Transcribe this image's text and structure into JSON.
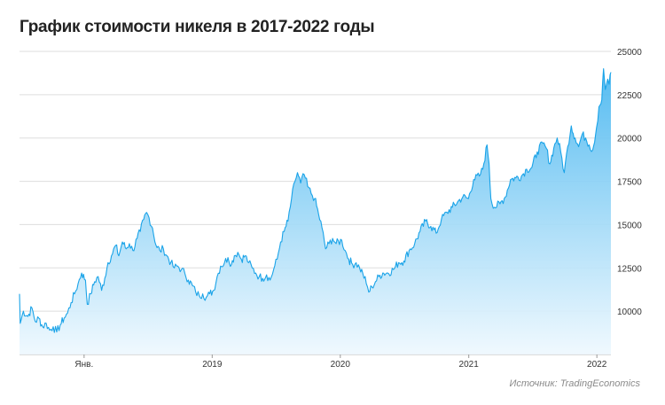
{
  "header": {
    "title": "График стоимости никеля в 2017-2022 годы"
  },
  "footer": {
    "source": "Источник: TradingEconomics"
  },
  "colors": {
    "line": "#1aa3e8",
    "fill_top": "#4cb8f0",
    "fill_bottom": "#eef8fe",
    "grid": "#dddddd"
  },
  "chart_data": {
    "type": "area",
    "title": "График стоимости никеля в 2017-2022 годы",
    "xlabel": "",
    "ylabel": "",
    "y_axis_position": "right",
    "ylim": [
      7500,
      25000
    ],
    "xlim": [
      "2017-07-01",
      "2022-02-10"
    ],
    "yticks": [
      10000,
      12500,
      15000,
      17500,
      20000,
      22500,
      25000
    ],
    "xticks": [
      {
        "date": "2018-01-01",
        "label": "Янв."
      },
      {
        "date": "2019-01-01",
        "label": "2019"
      },
      {
        "date": "2020-01-01",
        "label": "2020"
      },
      {
        "date": "2021-01-01",
        "label": "2021"
      },
      {
        "date": "2022-01-01",
        "label": "2022"
      }
    ],
    "grid": true,
    "series": [
      {
        "points": [
          [
            "2017-07-01",
            11000
          ],
          [
            "2017-07-03",
            9300
          ],
          [
            "2017-07-12",
            10000
          ],
          [
            "2017-07-25",
            9700
          ],
          [
            "2017-08-05",
            10200
          ],
          [
            "2017-08-15",
            9400
          ],
          [
            "2017-08-25",
            9600
          ],
          [
            "2017-09-05",
            9100
          ],
          [
            "2017-09-15",
            9300
          ],
          [
            "2017-09-25",
            8900
          ],
          [
            "2017-10-05",
            9100
          ],
          [
            "2017-10-15",
            8800
          ],
          [
            "2017-10-25",
            9200
          ],
          [
            "2017-11-05",
            9600
          ],
          [
            "2017-11-15",
            9900
          ],
          [
            "2017-11-25",
            10500
          ],
          [
            "2017-12-05",
            11000
          ],
          [
            "2017-12-15",
            11600
          ],
          [
            "2017-12-25",
            12200
          ],
          [
            "2018-01-05",
            11800
          ],
          [
            "2018-01-10",
            10400
          ],
          [
            "2018-01-20",
            11000
          ],
          [
            "2018-01-31",
            11700
          ],
          [
            "2018-02-10",
            12000
          ],
          [
            "2018-02-20",
            11200
          ],
          [
            "2018-03-01",
            11900
          ],
          [
            "2018-03-10",
            12800
          ],
          [
            "2018-03-20",
            13200
          ],
          [
            "2018-04-01",
            13800
          ],
          [
            "2018-04-10",
            13200
          ],
          [
            "2018-04-20",
            14000
          ],
          [
            "2018-05-01",
            13600
          ],
          [
            "2018-05-10",
            13900
          ],
          [
            "2018-05-20",
            13500
          ],
          [
            "2018-06-01",
            14200
          ],
          [
            "2018-06-10",
            14600
          ],
          [
            "2018-06-20",
            15300
          ],
          [
            "2018-06-28",
            15700
          ],
          [
            "2018-07-05",
            15400
          ],
          [
            "2018-07-15",
            14800
          ],
          [
            "2018-07-25",
            13800
          ],
          [
            "2018-08-05",
            13500
          ],
          [
            "2018-08-15",
            13600
          ],
          [
            "2018-08-25",
            13200
          ],
          [
            "2018-09-05",
            12800
          ],
          [
            "2018-09-15",
            12500
          ],
          [
            "2018-09-25",
            12600
          ],
          [
            "2018-10-05",
            12400
          ],
          [
            "2018-10-15",
            12200
          ],
          [
            "2018-10-25",
            11800
          ],
          [
            "2018-11-05",
            11500
          ],
          [
            "2018-11-15",
            11100
          ],
          [
            "2018-11-25",
            10900
          ],
          [
            "2018-12-05",
            11000
          ],
          [
            "2018-12-15",
            10800
          ],
          [
            "2018-12-25",
            11000
          ],
          [
            "2019-01-05",
            11200
          ],
          [
            "2019-01-15",
            12000
          ],
          [
            "2019-01-25",
            12600
          ],
          [
            "2019-02-05",
            12800
          ],
          [
            "2019-02-15",
            13100
          ],
          [
            "2019-02-25",
            12700
          ],
          [
            "2019-03-05",
            13200
          ],
          [
            "2019-03-15",
            13400
          ],
          [
            "2019-03-25",
            13000
          ],
          [
            "2019-04-05",
            13200
          ],
          [
            "2019-04-15",
            12800
          ],
          [
            "2019-04-25",
            12500
          ],
          [
            "2019-05-05",
            12200
          ],
          [
            "2019-05-15",
            12000
          ],
          [
            "2019-05-25",
            11900
          ],
          [
            "2019-06-05",
            12100
          ],
          [
            "2019-06-15",
            11800
          ],
          [
            "2019-06-25",
            12400
          ],
          [
            "2019-07-05",
            13000
          ],
          [
            "2019-07-15",
            14000
          ],
          [
            "2019-07-25",
            14600
          ],
          [
            "2019-08-05",
            15200
          ],
          [
            "2019-08-15",
            16500
          ],
          [
            "2019-08-25",
            17500
          ],
          [
            "2019-09-01",
            18000
          ],
          [
            "2019-09-10",
            17400
          ],
          [
            "2019-09-20",
            17900
          ],
          [
            "2019-09-30",
            17200
          ],
          [
            "2019-10-10",
            16800
          ],
          [
            "2019-10-20",
            16500
          ],
          [
            "2019-10-31",
            15600
          ],
          [
            "2019-11-10",
            14800
          ],
          [
            "2019-11-20",
            13600
          ],
          [
            "2019-11-30",
            13900
          ],
          [
            "2019-12-10",
            14200
          ],
          [
            "2019-12-20",
            13900
          ],
          [
            "2020-01-05",
            14100
          ],
          [
            "2020-01-15",
            13500
          ],
          [
            "2020-01-25",
            13000
          ],
          [
            "2020-02-05",
            12700
          ],
          [
            "2020-02-15",
            12800
          ],
          [
            "2020-02-25",
            12500
          ],
          [
            "2020-03-05",
            12200
          ],
          [
            "2020-03-15",
            11600
          ],
          [
            "2020-03-22",
            11100
          ],
          [
            "2020-03-31",
            11400
          ],
          [
            "2020-04-10",
            11700
          ],
          [
            "2020-04-20",
            12000
          ],
          [
            "2020-05-01",
            12200
          ],
          [
            "2020-05-15",
            12200
          ],
          [
            "2020-05-31",
            12400
          ],
          [
            "2020-06-15",
            12800
          ],
          [
            "2020-06-30",
            12900
          ],
          [
            "2020-07-15",
            13500
          ],
          [
            "2020-07-31",
            13900
          ],
          [
            "2020-08-15",
            14600
          ],
          [
            "2020-08-31",
            15200
          ],
          [
            "2020-09-15",
            14900
          ],
          [
            "2020-09-30",
            14500
          ],
          [
            "2020-10-15",
            15300
          ],
          [
            "2020-10-31",
            15700
          ],
          [
            "2020-11-15",
            16000
          ],
          [
            "2020-11-30",
            16300
          ],
          [
            "2020-12-15",
            16600
          ],
          [
            "2020-12-31",
            16500
          ],
          [
            "2021-01-15",
            17600
          ],
          [
            "2021-01-31",
            17800
          ],
          [
            "2021-02-10",
            18200
          ],
          [
            "2021-02-22",
            19600
          ],
          [
            "2021-02-28",
            18500
          ],
          [
            "2021-03-05",
            16500
          ],
          [
            "2021-03-15",
            16000
          ],
          [
            "2021-03-31",
            16200
          ],
          [
            "2021-04-15",
            16600
          ],
          [
            "2021-04-30",
            17600
          ],
          [
            "2021-05-15",
            17700
          ],
          [
            "2021-05-31",
            17800
          ],
          [
            "2021-06-15",
            18200
          ],
          [
            "2021-06-30",
            18300
          ],
          [
            "2021-07-15",
            19200
          ],
          [
            "2021-07-31",
            19700
          ],
          [
            "2021-08-10",
            19400
          ],
          [
            "2021-08-20",
            18500
          ],
          [
            "2021-08-31",
            19400
          ],
          [
            "2021-09-10",
            20000
          ],
          [
            "2021-09-20",
            19200
          ],
          [
            "2021-09-30",
            18000
          ],
          [
            "2021-10-10",
            19500
          ],
          [
            "2021-10-20",
            20700
          ],
          [
            "2021-10-31",
            20000
          ],
          [
            "2021-11-10",
            19500
          ],
          [
            "2021-11-20",
            20200
          ],
          [
            "2021-11-30",
            20000
          ],
          [
            "2021-12-10",
            19600
          ],
          [
            "2021-12-20",
            19300
          ],
          [
            "2021-12-31",
            20600
          ],
          [
            "2022-01-07",
            21800
          ],
          [
            "2022-01-15",
            22200
          ],
          [
            "2022-01-20",
            24000
          ],
          [
            "2022-01-25",
            22800
          ],
          [
            "2022-02-01",
            23400
          ],
          [
            "2022-02-05",
            23100
          ],
          [
            "2022-02-10",
            23800
          ]
        ]
      }
    ]
  }
}
